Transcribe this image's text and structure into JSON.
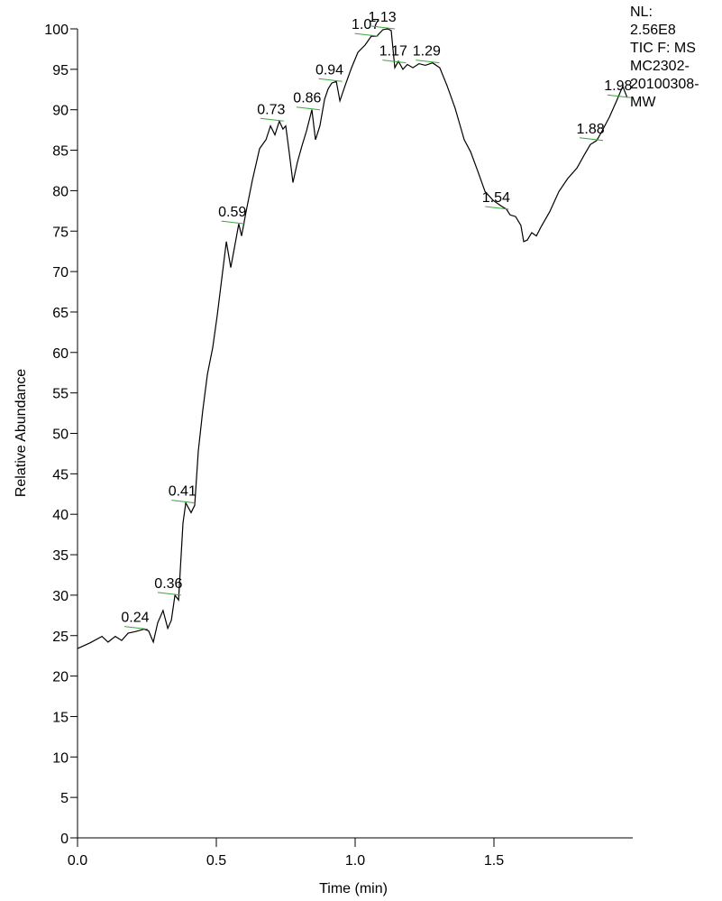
{
  "chart_data": {
    "type": "line",
    "x_label": "Time (min)",
    "y_label": "Relative Abundance",
    "xlim": [
      0,
      2
    ],
    "ylim": [
      0,
      100
    ],
    "xticks": [
      {
        "value": 0,
        "label": "0.0"
      },
      0.5,
      {
        "value": 1,
        "label": "1.0"
      },
      1.5
    ],
    "yticks": [
      0,
      5,
      10,
      15,
      20,
      25,
      30,
      35,
      40,
      45,
      50,
      55,
      60,
      65,
      70,
      75,
      80,
      85,
      90,
      95,
      100
    ],
    "series": [
      {
        "color": "#000000",
        "x": [
          0,
          0.045,
          0.088,
          0.11,
          0.136,
          0.159,
          0.182,
          0.208,
          0.24,
          0.256,
          0.273,
          0.289,
          0.308,
          0.325,
          0.338,
          0.351,
          0.364,
          0.38,
          0.39,
          0.409,
          0.422,
          0.435,
          0.451,
          0.468,
          0.487,
          0.503,
          0.519,
          0.536,
          0.552,
          0.565,
          0.581,
          0.591,
          0.607,
          0.63,
          0.656,
          0.679,
          0.695,
          0.711,
          0.727,
          0.74,
          0.75,
          0.763,
          0.776,
          0.792,
          0.808,
          0.825,
          0.844,
          0.857,
          0.873,
          0.89,
          0.903,
          0.916,
          0.932,
          0.945,
          0.964,
          0.987,
          1.01,
          1.036,
          1.058,
          1.078,
          1.1,
          1.117,
          1.13,
          1.143,
          1.156,
          1.172,
          1.188,
          1.208,
          1.23,
          1.253,
          1.279,
          1.305,
          1.331,
          1.36,
          1.393,
          1.416,
          1.442,
          1.468,
          1.497,
          1.526,
          1.545,
          1.558,
          1.578,
          1.597,
          1.607,
          1.62,
          1.636,
          1.653,
          1.669,
          1.701,
          1.734,
          1.766,
          1.799,
          1.825,
          1.847,
          1.87,
          1.89,
          1.916,
          1.942,
          1.964,
          1.98
        ],
        "values": [
          23.4,
          24.1,
          24.9,
          24.2,
          24.9,
          24.4,
          25.3,
          25.5,
          25.8,
          25.6,
          24.2,
          26.6,
          28.1,
          25.9,
          26.9,
          30.0,
          29.4,
          38.9,
          41.4,
          40.2,
          41.1,
          47.8,
          52.8,
          57.3,
          60.6,
          64.5,
          69.0,
          73.7,
          70.5,
          72.9,
          75.9,
          74.4,
          77.4,
          81.3,
          85.2,
          86.3,
          88.0,
          86.9,
          88.6,
          87.6,
          88.0,
          84.6,
          81.0,
          83.5,
          85.5,
          87.4,
          90.0,
          86.3,
          88.0,
          91.3,
          92.6,
          93.3,
          93.5,
          91.1,
          93.0,
          95.2,
          97.1,
          98.0,
          99.1,
          99.1,
          99.9,
          100,
          99.8,
          95.2,
          96.0,
          95.0,
          95.6,
          95.2,
          95.7,
          95.5,
          95.8,
          95.2,
          93.0,
          90.2,
          86.3,
          84.8,
          82.4,
          79.9,
          78.8,
          78.1,
          77.7,
          77.0,
          76.8,
          75.7,
          73.7,
          73.9,
          74.8,
          74.4,
          75.5,
          77.4,
          79.9,
          81.5,
          82.8,
          84.4,
          85.7,
          86.2,
          87.4,
          89.1,
          91.1,
          92.9,
          91.5
        ]
      }
    ],
    "peaks": {
      "color": "#3aa63a",
      "x": [
        0.24,
        0.36,
        0.41,
        0.59,
        0.73,
        0.86,
        0.94,
        1.07,
        1.13,
        1.17,
        1.29,
        1.54,
        1.88,
        1.98
      ],
      "y": [
        25.8,
        30.0,
        41.4,
        75.9,
        88.6,
        90.0,
        93.5,
        99.1,
        100,
        95.8,
        95.8,
        77.7,
        86.2,
        91.5
      ]
    },
    "info": [
      "NL:",
      "2.56E8",
      "TIC F:   MS",
      "MC2302-",
      "20100308-",
      "MW"
    ]
  }
}
